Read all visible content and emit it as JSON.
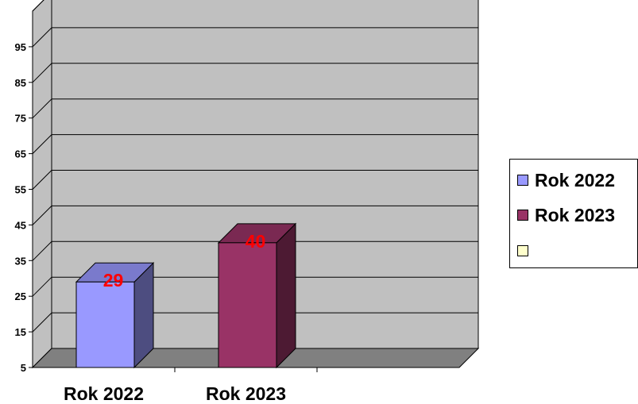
{
  "chart_data": {
    "type": "bar",
    "categories": [
      "Rok 2022",
      "Rok 2023",
      ""
    ],
    "series": [
      {
        "name": "Rok 2022",
        "color": "#9999ff",
        "values": [
          29,
          null,
          null
        ]
      },
      {
        "name": "Rok 2023",
        "color": "#993366",
        "values": [
          null,
          40,
          null
        ]
      },
      {
        "name": "",
        "color": "#ffffcc",
        "values": [
          null,
          null,
          null
        ]
      }
    ],
    "data_labels": [
      "29",
      "40"
    ],
    "data_label_color": "#ff0000",
    "yticks": [
      "5",
      "15",
      "25",
      "35",
      "45",
      "55",
      "65",
      "75",
      "85",
      "95"
    ],
    "ylim": [
      5,
      105
    ],
    "grid": true,
    "legend_position": "right",
    "style": "3d-column",
    "colors": {
      "wall": "#c0c0c0",
      "floor": "#808080",
      "grid": "#000000"
    }
  }
}
